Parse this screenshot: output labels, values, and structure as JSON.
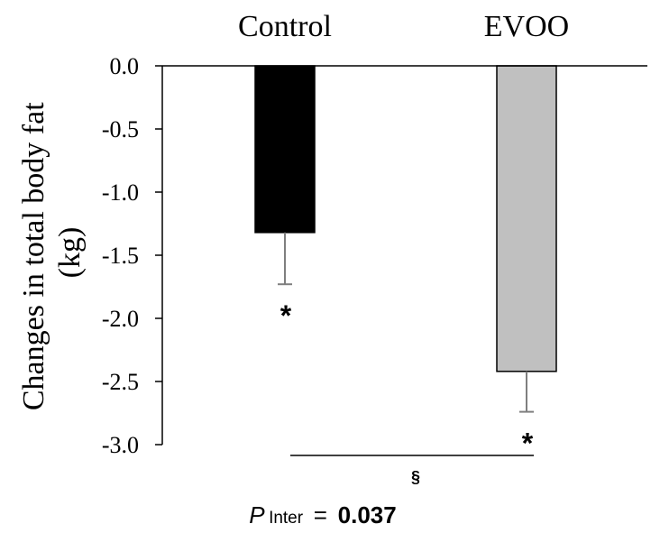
{
  "chart_data": {
    "type": "bar",
    "categories": [
      "Control",
      "EVOO"
    ],
    "values": [
      -1.32,
      -2.42
    ],
    "errors": [
      0.41,
      0.32
    ],
    "bar_colors": [
      "#000000",
      "#c0c0c0"
    ],
    "significance_markers": [
      "*",
      "*"
    ],
    "ylabel_line1": "Changes in total body fat",
    "ylabel_line2": "(kg)",
    "ylim": [
      -3.0,
      0.0
    ],
    "yticks": [
      "0.0",
      "-0.5",
      "-1.0",
      "-1.5",
      "-2.0",
      "-2.5",
      "-3.0"
    ],
    "ytick_values": [
      0.0,
      -0.5,
      -1.0,
      -1.5,
      -2.0,
      -2.5,
      -3.0
    ],
    "comparison_symbol": "§",
    "p_label": "P",
    "p_subscript": "Inter",
    "p_equals": " = ",
    "p_value": "0.037"
  }
}
